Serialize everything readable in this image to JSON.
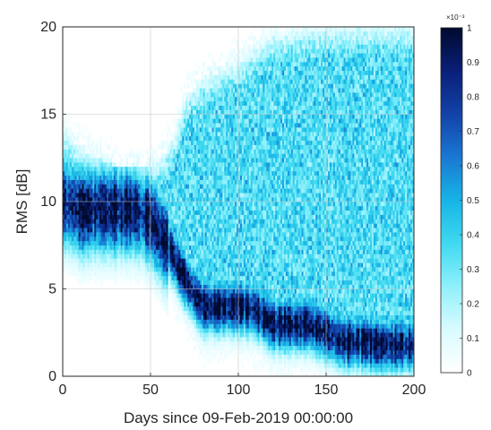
{
  "chart_data": {
    "type": "heatmap",
    "title": "",
    "xlabel": "Days since 09-Feb-2019 00:00:00",
    "ylabel": "RMS [dB]",
    "xlim": [
      0,
      200
    ],
    "ylim": [
      0,
      20
    ],
    "x_ticks": [
      0,
      50,
      100,
      150,
      200
    ],
    "y_ticks": [
      0,
      5,
      10,
      15,
      20
    ],
    "grid": true,
    "colormap": [
      "#ffffff",
      "#d9fbff",
      "#8ff0fb",
      "#3fd9f0",
      "#17b4e6",
      "#1a78d2",
      "#1242a8",
      "#0a1f78",
      "#000a2e"
    ],
    "colorbar": {
      "min": 0,
      "max": 1,
      "ticks": [
        0,
        0.1,
        0.2,
        0.3,
        0.4,
        0.5,
        0.6,
        0.7,
        0.8,
        0.9,
        1
      ],
      "multiplier": "×10⁻³"
    },
    "ridge": {
      "description": "high-density band (mode of RMS per day)",
      "x": [
        0,
        10,
        20,
        30,
        40,
        50,
        60,
        70,
        80,
        90,
        100,
        110,
        120,
        130,
        140,
        150,
        160,
        170,
        180,
        190,
        200
      ],
      "y": [
        10,
        9.5,
        9.5,
        9.5,
        9.5,
        9,
        7.5,
        5.5,
        4,
        4,
        4,
        3.8,
        3,
        3,
        3,
        2.5,
        2,
        2,
        1.8,
        1.8,
        1.8
      ]
    },
    "diffuse_upper_limit": {
      "x": [
        0,
        10,
        20,
        30,
        40,
        50,
        60,
        65,
        70,
        80,
        100,
        120,
        150,
        200
      ],
      "y": [
        14,
        13,
        12.5,
        12,
        12,
        12,
        13,
        14,
        16,
        17,
        18,
        19.5,
        20,
        20
      ]
    }
  }
}
